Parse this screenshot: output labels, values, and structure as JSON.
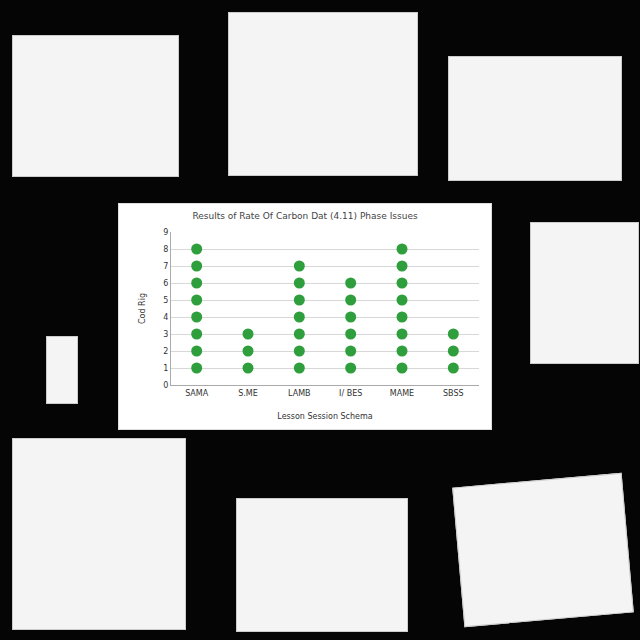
{
  "chart_data": {
    "type": "dot",
    "title": "Results of Rate Of Carbon Dat (4.11) Phase Issues",
    "x_label": "Lesson Session Schema",
    "y_label": "Cod Rig",
    "categories": [
      "SAMA",
      "S.ME",
      "LAMB",
      "I/ BES",
      "MAME",
      "SBSS"
    ],
    "values": [
      8,
      3,
      7,
      6,
      8,
      3
    ],
    "color": "#2f9e3c",
    "marker": "circle",
    "ylim": [
      0,
      9
    ],
    "yticks": [
      0,
      1,
      2,
      3,
      4,
      5,
      6,
      7,
      8,
      9
    ],
    "grid": true
  }
}
